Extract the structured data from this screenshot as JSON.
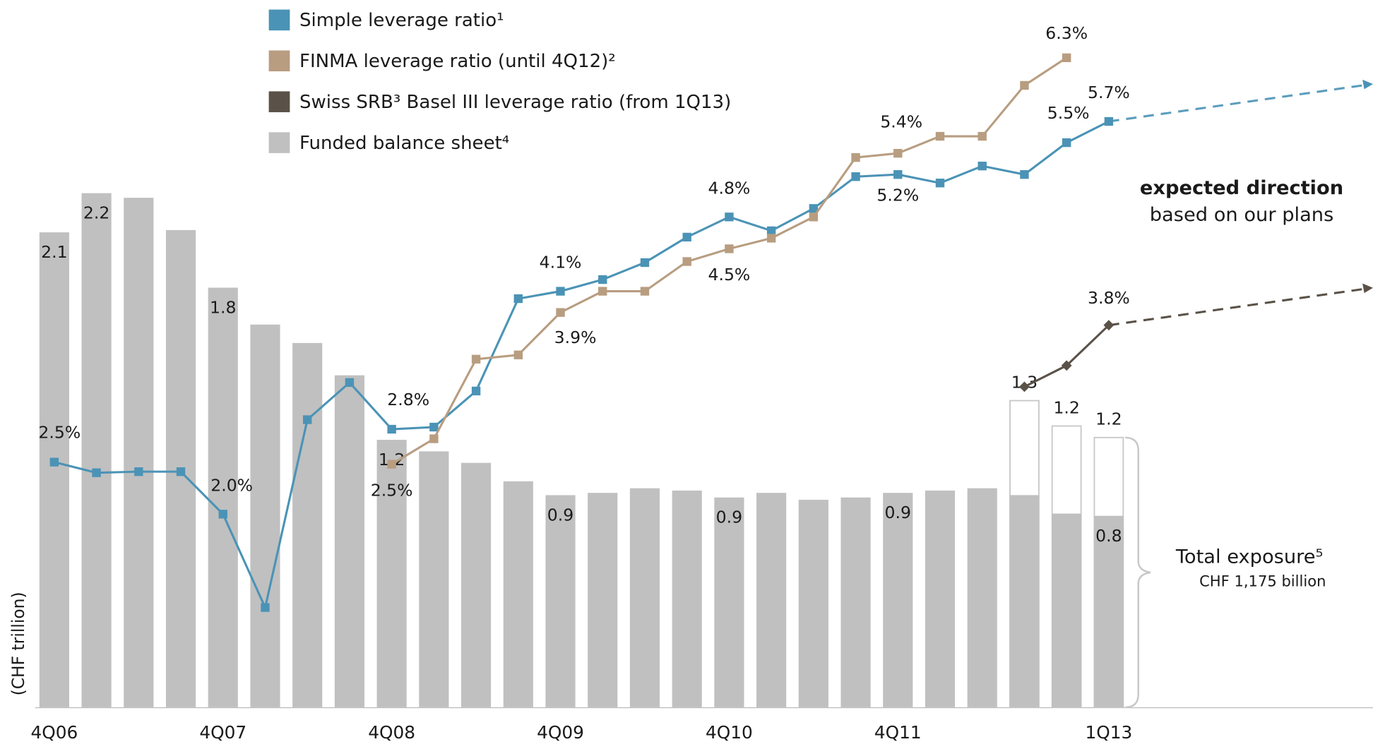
{
  "chart_data": {
    "type": "combo",
    "categories": [
      "4Q06",
      null,
      null,
      null,
      "4Q07",
      null,
      null,
      null,
      "4Q08",
      null,
      null,
      null,
      "4Q09",
      null,
      null,
      null,
      "4Q10",
      null,
      null,
      null,
      "4Q11",
      null,
      null,
      null,
      null,
      "1Q13"
    ],
    "y_axis_label": "(CHF trillion)",
    "annotations": [
      "expected direction",
      "based on our plans",
      "CHF 1,175 billion"
    ],
    "series": [
      {
        "name": "Funded balance sheet⁴",
        "kind": "bar",
        "color": "#c0c0c0",
        "legend": true,
        "values": [
          2.06,
          2.23,
          2.21,
          2.07,
          1.82,
          1.66,
          1.58,
          1.44,
          1.16,
          1.11,
          1.06,
          0.98,
          0.92,
          0.93,
          0.95,
          0.94,
          0.91,
          0.93,
          0.9,
          0.91,
          0.93,
          0.94,
          0.95,
          0.92,
          0.84,
          0.83
        ],
        "value_labels": [
          "2.1",
          "2.2",
          null,
          null,
          "1.8",
          null,
          null,
          null,
          "1.2",
          null,
          null,
          null,
          "0.9",
          null,
          null,
          null,
          "0.9",
          null,
          null,
          null,
          "0.9",
          null,
          null,
          null,
          null,
          "0.8"
        ]
      },
      {
        "name": "Total exposure⁵",
        "kind": "outline-bar",
        "color": "#c8c8c8",
        "legend": false,
        "values": [
          null,
          null,
          null,
          null,
          null,
          null,
          null,
          null,
          null,
          null,
          null,
          null,
          null,
          null,
          null,
          null,
          null,
          null,
          null,
          null,
          null,
          null,
          null,
          1.33,
          1.22,
          1.17
        ],
        "value_labels": [
          null,
          null,
          null,
          null,
          null,
          null,
          null,
          null,
          null,
          null,
          null,
          null,
          null,
          null,
          null,
          null,
          null,
          null,
          null,
          null,
          null,
          null,
          null,
          "1.3",
          "1.2",
          "1.2"
        ]
      },
      {
        "name": "Simple leverage ratio¹",
        "kind": "line",
        "marker": "square",
        "color": "#4b93b6",
        "legend": true,
        "projection": true,
        "values": [
          2.49,
          2.39,
          2.4,
          2.4,
          2.0,
          1.12,
          2.89,
          3.24,
          2.8,
          2.82,
          3.16,
          4.03,
          4.1,
          4.21,
          4.37,
          4.61,
          4.8,
          4.67,
          4.88,
          5.18,
          5.2,
          5.12,
          5.28,
          5.2,
          5.5,
          5.7
        ],
        "value_labels": [
          "2.5%",
          null,
          null,
          null,
          "2.0%",
          null,
          null,
          null,
          "2.8%",
          null,
          null,
          null,
          "4.1%",
          null,
          null,
          null,
          "4.8%",
          null,
          null,
          null,
          "5.2%",
          null,
          null,
          null,
          "5.5%",
          "5.7%"
        ]
      },
      {
        "name": "FINMA leverage ratio (until 4Q12)²",
        "kind": "line",
        "marker": "square",
        "color": "#b89d80",
        "legend": true,
        "projection": false,
        "values": [
          null,
          null,
          null,
          null,
          null,
          null,
          null,
          null,
          2.47,
          2.71,
          3.46,
          3.5,
          3.9,
          4.1,
          4.1,
          4.38,
          4.5,
          4.6,
          4.8,
          5.36,
          5.4,
          5.56,
          5.56,
          6.04,
          6.3,
          null
        ],
        "value_labels": [
          null,
          null,
          null,
          null,
          null,
          null,
          null,
          null,
          "2.5%",
          null,
          null,
          null,
          "3.9%",
          null,
          null,
          null,
          "4.5%",
          null,
          null,
          null,
          "5.4%",
          null,
          null,
          null,
          "6.3%",
          null
        ]
      },
      {
        "name": "Swiss SRB³ Basel III leverage ratio (from 1Q13)",
        "kind": "line",
        "marker": "diamond",
        "color": "#5a5248",
        "legend": true,
        "projection": true,
        "values": [
          null,
          null,
          null,
          null,
          null,
          null,
          null,
          null,
          null,
          null,
          null,
          null,
          null,
          null,
          null,
          null,
          null,
          null,
          null,
          null,
          null,
          null,
          null,
          3.2,
          3.4,
          3.78
        ],
        "value_labels": [
          null,
          null,
          null,
          null,
          null,
          null,
          null,
          null,
          null,
          null,
          null,
          null,
          null,
          null,
          null,
          null,
          null,
          null,
          null,
          null,
          null,
          null,
          null,
          null,
          null,
          "3.8%"
        ]
      }
    ]
  }
}
